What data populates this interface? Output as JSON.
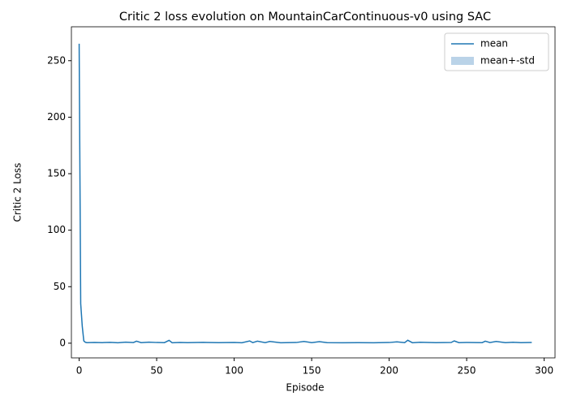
{
  "chart_data": {
    "type": "line",
    "title": "Critic 2 loss evolution on MountainCarContinuous-v0 using SAC",
    "xlabel": "Episode",
    "ylabel": "Critic 2 Loss",
    "x": [
      0,
      1,
      2,
      3,
      4,
      5,
      10,
      15,
      20,
      25,
      30,
      35,
      37,
      40,
      45,
      50,
      55,
      58,
      60,
      65,
      70,
      80,
      90,
      100,
      105,
      110,
      112,
      115,
      120,
      123,
      130,
      140,
      145,
      150,
      155,
      160,
      170,
      180,
      190,
      200,
      205,
      210,
      212,
      215,
      220,
      230,
      240,
      242,
      245,
      250,
      260,
      262,
      265,
      269,
      275,
      280,
      285,
      292
    ],
    "series": [
      {
        "name": "mean",
        "color": "#1f77b4",
        "values": [
          265,
          35,
          15,
          2,
          0.8,
          0.5,
          0.6,
          0.5,
          0.7,
          0.4,
          0.9,
          0.6,
          1.8,
          0.5,
          0.9,
          0.6,
          0.5,
          2.5,
          0.4,
          0.6,
          0.5,
          0.7,
          0.5,
          0.6,
          0.4,
          2,
          0.5,
          1.8,
          0.5,
          1.5,
          0.4,
          0.6,
          1.5,
          0.5,
          1.4,
          0.5,
          0.4,
          0.5,
          0.4,
          0.6,
          1.2,
          0.5,
          2.6,
          0.4,
          0.8,
          0.5,
          0.6,
          2,
          0.5,
          0.6,
          0.5,
          1.8,
          0.6,
          1.5,
          0.5,
          0.8,
          0.5,
          0.6
        ]
      },
      {
        "name": "mean+-std",
        "color": "#bad3e8",
        "std": [
          2,
          1.5,
          1,
          0.5,
          0.3,
          0.2,
          0.2,
          0.2,
          0.2,
          0.2,
          0.2,
          0.2,
          0.3,
          0.2,
          0.2,
          0.2,
          0.2,
          0.4,
          0.2,
          0.2,
          0.2,
          0.2,
          0.2,
          0.2,
          0.2,
          0.3,
          0.2,
          0.3,
          0.2,
          0.3,
          0.2,
          0.2,
          0.3,
          0.2,
          0.3,
          0.2,
          0.2,
          0.2,
          0.2,
          0.2,
          0.2,
          0.2,
          0.4,
          0.2,
          0.2,
          0.2,
          0.2,
          0.3,
          0.2,
          0.2,
          0.2,
          0.3,
          0.2,
          0.3,
          0.2,
          0.2,
          0.2,
          0.2
        ]
      }
    ],
    "xlim": [
      -5,
      307
    ],
    "ylim": [
      -13,
      280
    ],
    "xticks": [
      0,
      50,
      100,
      150,
      200,
      250,
      300
    ],
    "yticks": [
      0,
      50,
      100,
      150,
      200,
      250
    ],
    "legend": "upper right"
  }
}
